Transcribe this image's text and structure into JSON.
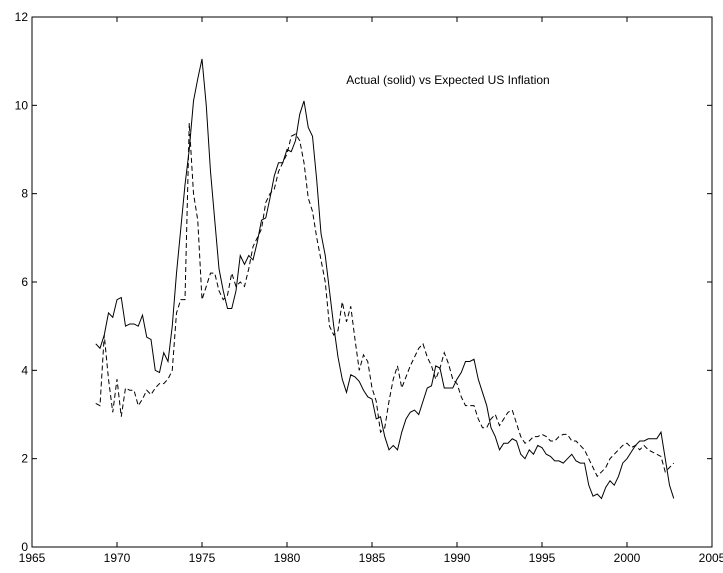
{
  "chart_data": {
    "type": "line",
    "title": "Actual (solid) vs Expected US Inflation",
    "x": [
      1968.75,
      1969,
      1969.25,
      1969.5,
      1969.75,
      1970,
      1970.25,
      1970.5,
      1970.75,
      1971,
      1971.25,
      1971.5,
      1971.75,
      1972,
      1972.25,
      1972.5,
      1972.75,
      1973,
      1973.25,
      1973.5,
      1973.75,
      1974,
      1974.25,
      1974.5,
      1974.75,
      1975,
      1975.25,
      1975.5,
      1975.75,
      1976,
      1976.25,
      1976.5,
      1976.75,
      1977,
      1977.25,
      1977.5,
      1977.75,
      1978,
      1978.25,
      1978.5,
      1978.75,
      1979,
      1979.25,
      1979.5,
      1979.75,
      1980,
      1980.25,
      1980.5,
      1980.75,
      1981,
      1981.25,
      1981.5,
      1981.75,
      1982,
      1982.25,
      1982.5,
      1982.75,
      1983,
      1983.25,
      1983.5,
      1983.75,
      1984,
      1984.25,
      1984.5,
      1984.75,
      1985,
      1985.25,
      1985.5,
      1985.75,
      1986,
      1986.25,
      1986.5,
      1986.75,
      1987,
      1987.25,
      1987.5,
      1987.75,
      1988,
      1988.25,
      1988.5,
      1988.75,
      1989,
      1989.25,
      1989.5,
      1989.75,
      1990,
      1990.25,
      1990.5,
      1990.75,
      1991,
      1991.25,
      1991.5,
      1991.75,
      1992,
      1992.25,
      1992.5,
      1992.75,
      1993,
      1993.25,
      1993.5,
      1993.75,
      1994,
      1994.25,
      1994.5,
      1994.75,
      1995,
      1995.25,
      1995.5,
      1995.75,
      1996,
      1996.25,
      1996.5,
      1996.75,
      1997,
      1997.25,
      1997.5,
      1997.75,
      1998,
      1998.25,
      1998.5,
      1998.75,
      1999,
      1999.25,
      1999.5,
      1999.75,
      2000,
      2000.25,
      2000.5,
      2000.75,
      2001,
      2001.25,
      2001.5,
      2001.75,
      2002,
      2002.25,
      2002.5,
      2002.75
    ],
    "series": [
      {
        "color": "#000000",
        "linestyle": "solid",
        "values": [
          4.6,
          4.5,
          4.8,
          5.3,
          5.2,
          5.6,
          5.65,
          5.0,
          5.05,
          5.05,
          5.0,
          5.25,
          4.75,
          4.7,
          4.0,
          3.95,
          4.4,
          4.2,
          5.0,
          6.2,
          7.2,
          8.2,
          9.0,
          10.1,
          10.6,
          11.05,
          10.0,
          8.5,
          7.4,
          6.3,
          5.8,
          5.4,
          5.4,
          5.8,
          6.6,
          6.4,
          6.6,
          6.5,
          6.9,
          7.4,
          7.45,
          7.9,
          8.4,
          8.7,
          8.7,
          9.0,
          8.95,
          9.2,
          9.8,
          10.1,
          9.5,
          9.3,
          8.3,
          7.1,
          6.6,
          5.8,
          5.0,
          4.3,
          3.8,
          3.5,
          3.9,
          3.85,
          3.75,
          3.55,
          3.4,
          3.35,
          2.9,
          2.95,
          2.5,
          2.2,
          2.3,
          2.2,
          2.6,
          2.9,
          3.05,
          3.1,
          3.0,
          3.3,
          3.6,
          3.65,
          4.1,
          4.05,
          3.6,
          3.6,
          3.6,
          3.8,
          3.95,
          4.2,
          4.2,
          4.25,
          3.8,
          3.5,
          3.2,
          2.7,
          2.5,
          2.2,
          2.35,
          2.35,
          2.45,
          2.4,
          2.1,
          2.0,
          2.2,
          2.1,
          2.3,
          2.25,
          2.1,
          2.05,
          1.95,
          1.95,
          1.9,
          2.0,
          2.1,
          1.95,
          1.9,
          1.9,
          1.4,
          1.15,
          1.2,
          1.1,
          1.35,
          1.5,
          1.4,
          1.6,
          1.9,
          2.0,
          2.15,
          2.3,
          2.4,
          2.4,
          2.45,
          2.45,
          2.45,
          2.6,
          2.0,
          1.4,
          1.1
        ]
      },
      {
        "color": "#000000",
        "linestyle": "dashed",
        "values": [
          3.25,
          3.2,
          4.8,
          3.8,
          3.05,
          3.8,
          2.95,
          3.6,
          3.55,
          3.55,
          3.2,
          3.35,
          3.55,
          3.45,
          3.6,
          3.7,
          3.7,
          3.8,
          4.0,
          5.3,
          5.6,
          5.6,
          9.6,
          8.0,
          7.4,
          5.6,
          5.9,
          6.2,
          6.2,
          5.8,
          5.6,
          5.7,
          6.2,
          5.9,
          6.0,
          5.9,
          6.3,
          6.8,
          7.0,
          7.2,
          7.8,
          8.0,
          8.1,
          8.5,
          8.7,
          8.9,
          9.3,
          9.35,
          9.2,
          8.7,
          7.9,
          7.6,
          7.0,
          6.5,
          6.0,
          5.0,
          4.8,
          4.9,
          5.55,
          5.1,
          5.45,
          4.7,
          4.0,
          4.35,
          4.2,
          3.6,
          3.3,
          2.6,
          2.7,
          3.3,
          3.8,
          4.1,
          3.6,
          3.85,
          4.1,
          4.3,
          4.5,
          4.6,
          4.3,
          4.1,
          3.8,
          4.05,
          4.4,
          4.15,
          3.8,
          3.7,
          3.4,
          3.2,
          3.2,
          3.2,
          2.9,
          2.7,
          2.7,
          2.9,
          3.0,
          2.75,
          2.9,
          3.05,
          3.1,
          2.8,
          2.5,
          2.35,
          2.4,
          2.5,
          2.5,
          2.55,
          2.5,
          2.4,
          2.4,
          2.5,
          2.55,
          2.55,
          2.4,
          2.4,
          2.3,
          2.2,
          2.0,
          1.8,
          1.6,
          1.7,
          1.8,
          2.0,
          2.1,
          2.2,
          2.3,
          2.35,
          2.25,
          2.3,
          2.2,
          2.3,
          2.2,
          2.15,
          2.1,
          2.05,
          1.7,
          1.8,
          1.9
        ]
      }
    ],
    "xlim": [
      1965,
      2005
    ],
    "xticks": [
      1965,
      1970,
      1975,
      1980,
      1985,
      1990,
      1995,
      2000,
      2005
    ],
    "ylim": [
      0,
      12
    ],
    "yticks": [
      0,
      2,
      4,
      6,
      8,
      10,
      12
    ],
    "grid": false
  }
}
